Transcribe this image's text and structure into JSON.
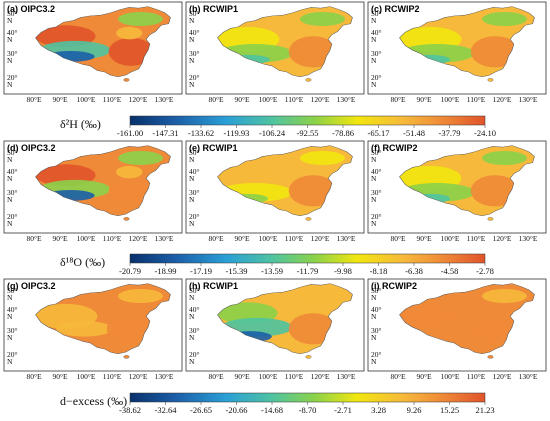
{
  "rows": [
    {
      "panels": [
        "(a) OIPC3.2",
        "(b) RCWIP1",
        "(c) RCWIP2"
      ],
      "schemes": [
        "a",
        "b",
        "c"
      ],
      "colorbar": {
        "label": "δ²H (‰)",
        "ticks": [
          "-161.00",
          "-147.31",
          "-133.62",
          "-119.93",
          "-106.24",
          "-92.55",
          "-78.86",
          "-65.17",
          "-51.48",
          "-37.79",
          "-24.10"
        ]
      }
    },
    {
      "panels": [
        "(d) OIPC3.2",
        "(e) RCWIP1",
        "(f) RCWIP2"
      ],
      "schemes": [
        "d",
        "e",
        "f"
      ],
      "colorbar": {
        "label": "δ¹⁸O (‰)",
        "ticks": [
          "-20.79",
          "-18.99",
          "-17.19",
          "-15.39",
          "-13.59",
          "-11.79",
          "-9.98",
          "-8.18",
          "-6.38",
          "-4.58",
          "-2.78"
        ]
      }
    },
    {
      "panels": [
        "(g) OIPC3.2",
        "(h) RCWIP1",
        "(i) RCWIP2"
      ],
      "schemes": [
        "g",
        "h",
        "i"
      ],
      "colorbar": {
        "label": "d−excess (‰)",
        "ticks": [
          "-38.62",
          "-32.64",
          "-26.65",
          "-20.66",
          "-14.68",
          "-8.70",
          "-2.71",
          "3.28",
          "9.26",
          "15.25",
          "21.23"
        ]
      }
    }
  ],
  "lat_labels": [
    "50°",
    "N",
    "40°",
    "N",
    "30°",
    "N",
    "20°",
    "N"
  ],
  "lon_labels": [
    "80°E",
    "90°E",
    "100°E",
    "110°E",
    "120°E",
    "130°E"
  ],
  "colors": {
    "scale": [
      "#08306b",
      "#1c5fa8",
      "#2a9fd6",
      "#4fc3a1",
      "#8bd24a",
      "#f2e60f",
      "#f6b93b",
      "#ef8a38",
      "#e0532a"
    ],
    "background": "#ffffff"
  }
}
